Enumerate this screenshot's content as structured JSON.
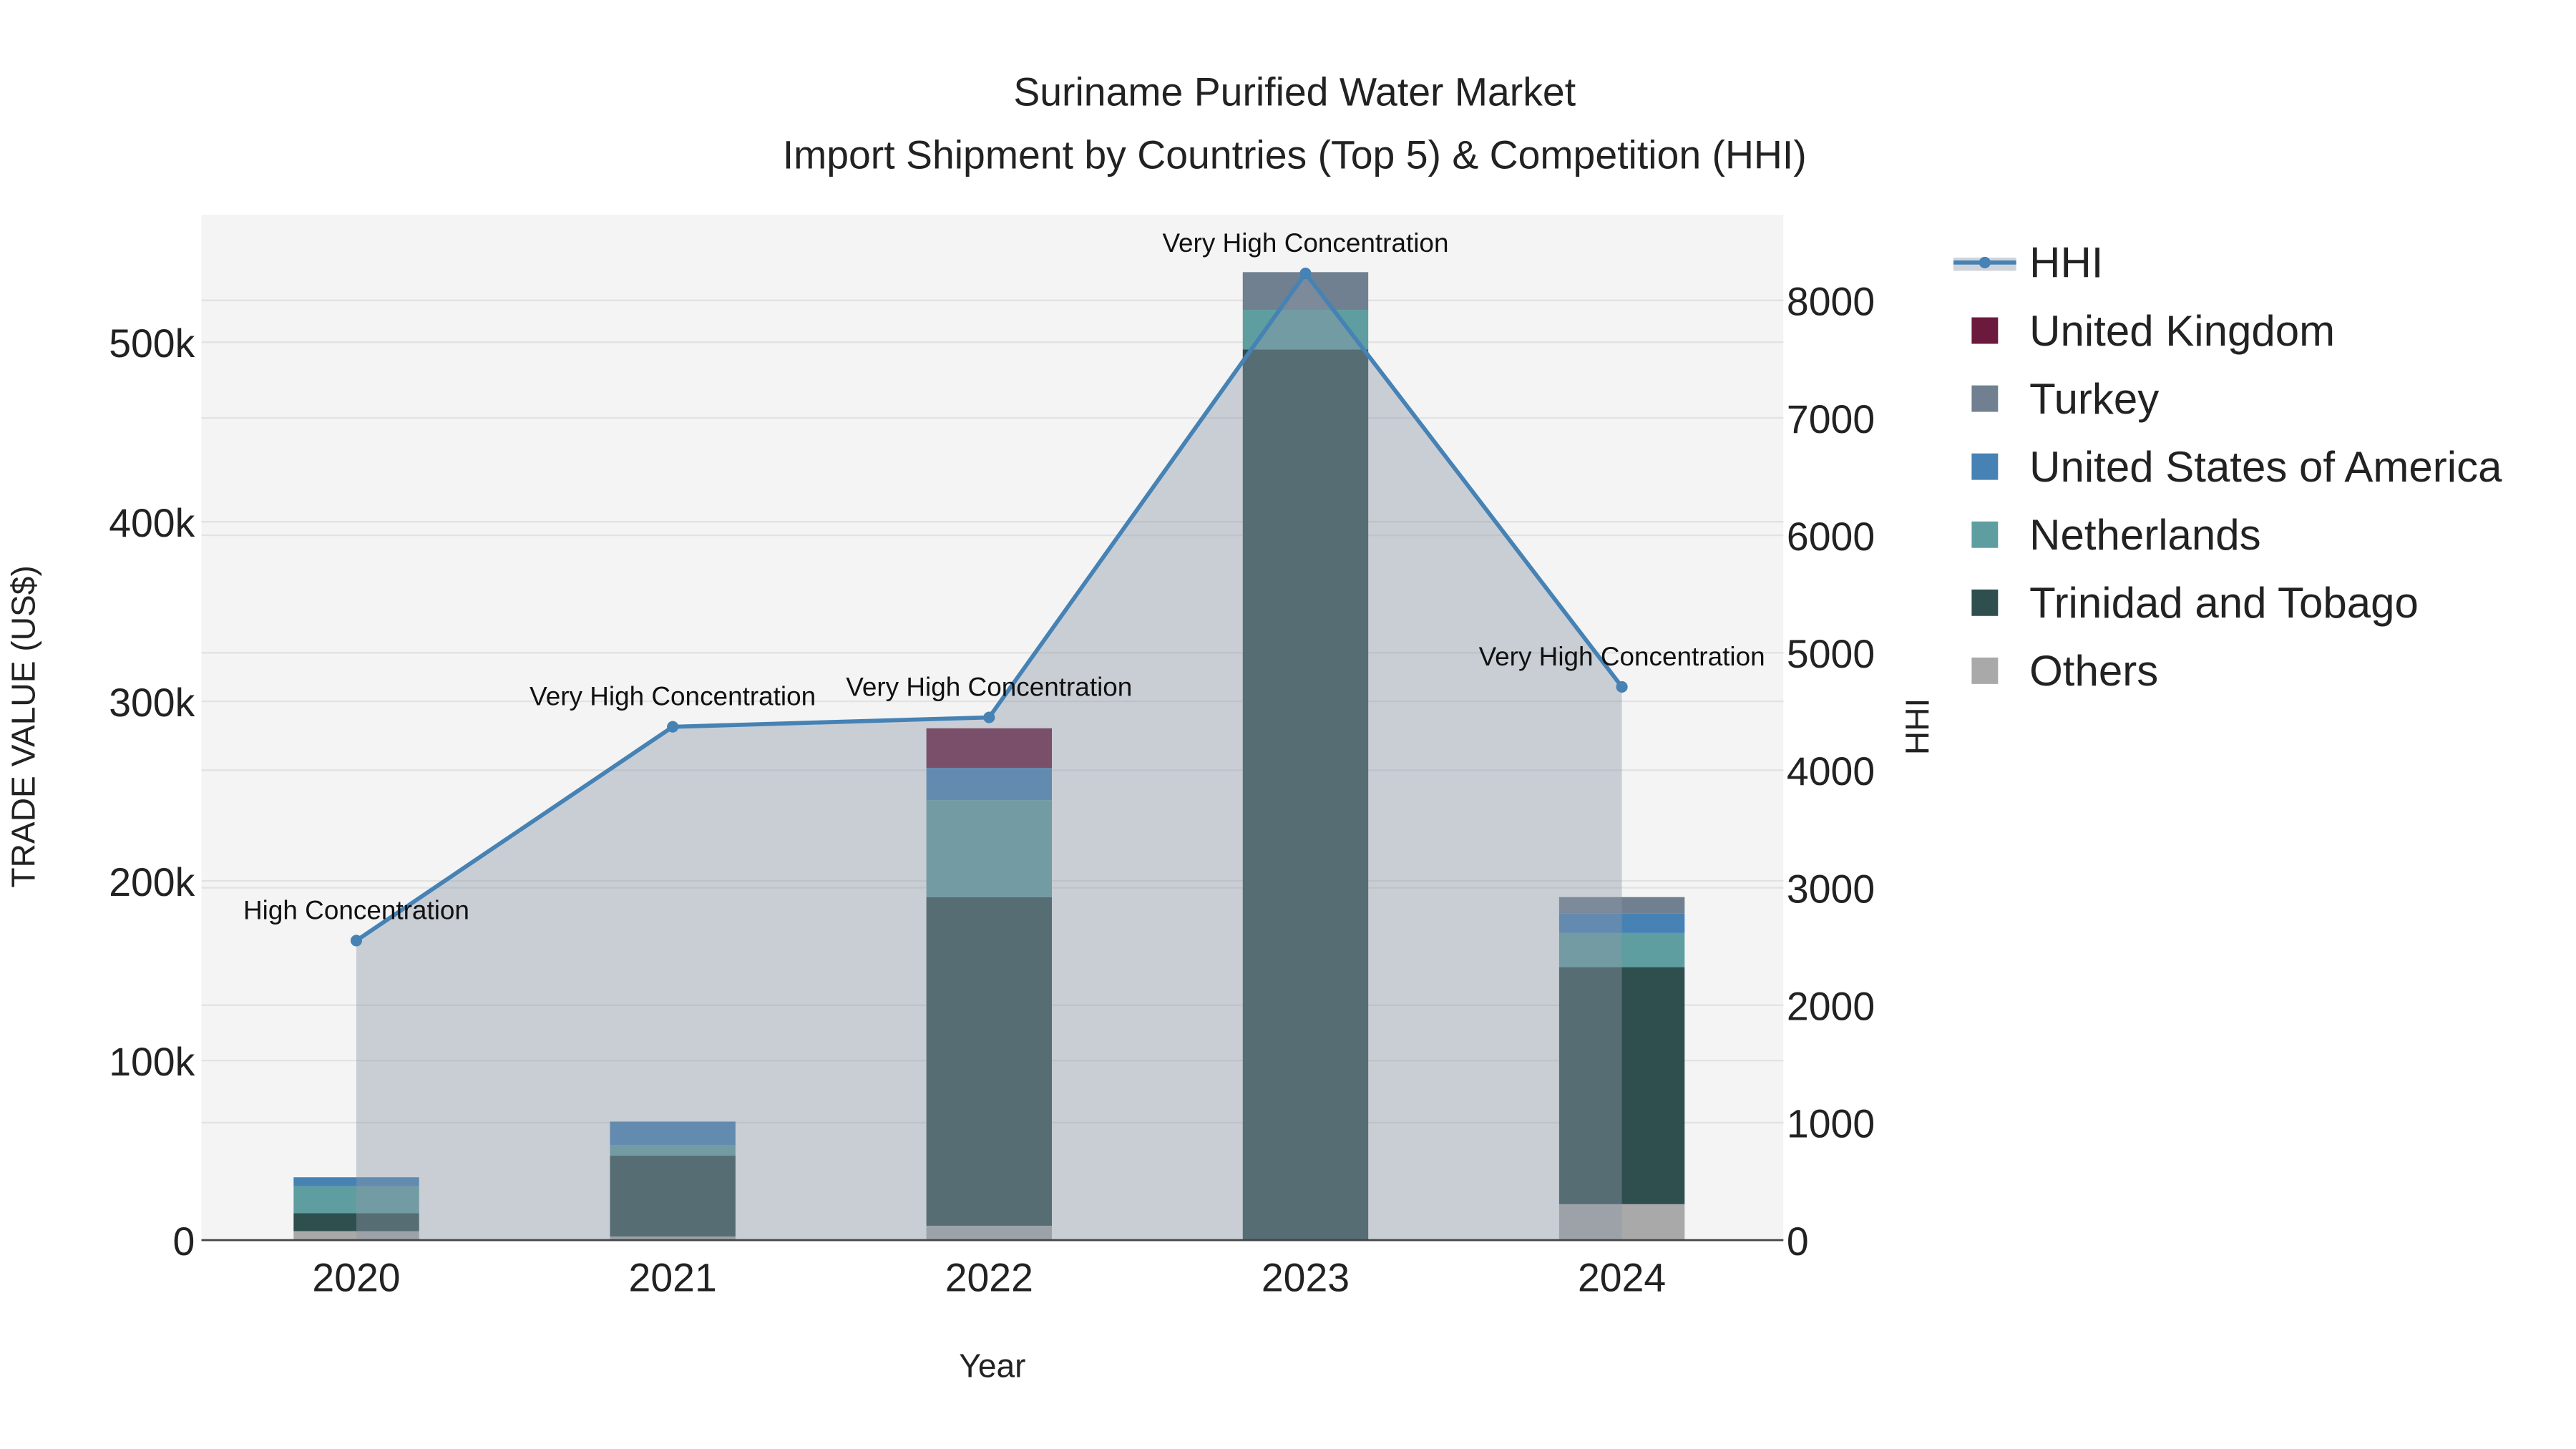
{
  "chart_data": {
    "type": "bar",
    "title": "Suriname Purified Water Market",
    "subtitle": "Import Shipment by Countries (Top 5) & Competition (HHI)",
    "xlabel": "Year",
    "ylabel": "TRADE VALUE (US$)",
    "y2label": "HHI",
    "categories": [
      "2020",
      "2021",
      "2022",
      "2023",
      "2024"
    ],
    "ylim": [
      0,
      571000
    ],
    "y2lim": [
      0,
      8730
    ],
    "yticks": [
      0,
      100000,
      200000,
      300000,
      400000,
      500000
    ],
    "ytick_labels": [
      "0",
      "100k",
      "200k",
      "300k",
      "400k",
      "500k"
    ],
    "y2ticks": [
      0,
      1000,
      2000,
      3000,
      4000,
      5000,
      6000,
      7000,
      8000
    ],
    "y2tick_labels": [
      "0",
      "1000",
      "2000",
      "3000",
      "4000",
      "5000",
      "6000",
      "7000",
      "8000"
    ],
    "grid": true,
    "legend_placement": "right",
    "stacked": true,
    "series": [
      {
        "name": "Others",
        "color": "#a9a9a9",
        "values": [
          5000,
          2000,
          8000,
          0,
          20000
        ]
      },
      {
        "name": "Trinidad and Tobago",
        "color": "#2f4f4f",
        "values": [
          10000,
          45000,
          183000,
          496000,
          132000
        ]
      },
      {
        "name": "Netherlands",
        "color": "#5f9ea0",
        "values": [
          15000,
          6000,
          54000,
          22000,
          19000
        ]
      },
      {
        "name": "United States of America",
        "color": "#4682b4",
        "values": [
          5000,
          13000,
          18000,
          0,
          11000
        ]
      },
      {
        "name": "Turkey",
        "color": "#708090",
        "values": [
          0,
          0,
          0,
          21000,
          9000
        ]
      },
      {
        "name": "United Kingdom",
        "color": "#6b1a3d",
        "values": [
          0,
          0,
          22000,
          0,
          0
        ]
      }
    ],
    "hhi": {
      "name": "HHI",
      "color": "#4682b4",
      "values": [
        2550,
        4370,
        4450,
        8230,
        4710
      ],
      "annotations": [
        "High Concentration",
        "Very High Concentration",
        "Very High Concentration",
        "Very High Concentration",
        "Very High Concentration"
      ]
    },
    "legend_order": [
      "HHI",
      "United Kingdom",
      "Turkey",
      "United States of America",
      "Netherlands",
      "Trinidad and Tobago",
      "Others"
    ]
  }
}
